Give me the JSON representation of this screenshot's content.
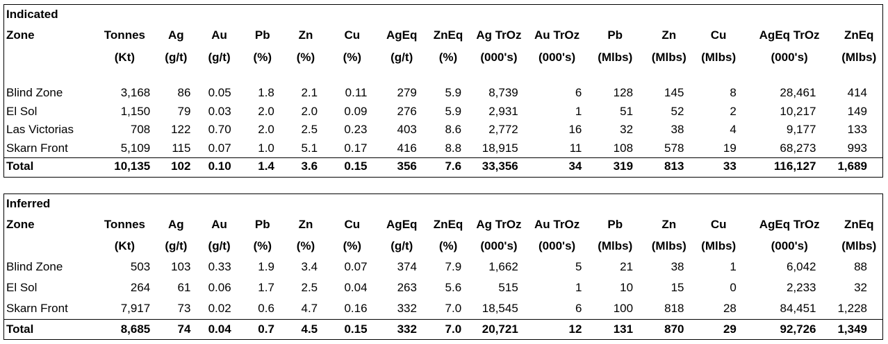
{
  "tables": [
    {
      "title": "Indicated",
      "headers_top": [
        "Zone",
        "Tonnes",
        "Ag",
        "Au",
        "Pb",
        "Zn",
        "Cu",
        "AgEq",
        "ZnEq",
        "Ag TrOz",
        "Au TrOz",
        "Pb",
        "Zn",
        "Cu",
        "AgEq TrOz",
        "ZnEq"
      ],
      "headers_bottom": [
        "",
        "(Kt)",
        "(g/t)",
        "(g/t)",
        "(%)",
        "(%)",
        "(%)",
        "(g/t)",
        "(%)",
        "(000's)",
        "(000's)",
        "(Mlbs)",
        "(Mlbs)",
        "(Mlbs)",
        "(000's)",
        "(Mlbs)"
      ],
      "rows": [
        [
          "Blind Zone",
          "3,168",
          "86",
          "0.05",
          "1.8",
          "2.1",
          "0.11",
          "279",
          "5.9",
          "8,739",
          "6",
          "128",
          "145",
          "8",
          "28,461",
          "414"
        ],
        [
          "El Sol",
          "1,150",
          "79",
          "0.03",
          "2.0",
          "2.0",
          "0.09",
          "276",
          "5.9",
          "2,931",
          "1",
          "51",
          "52",
          "2",
          "10,217",
          "149"
        ],
        [
          "Las Victorias",
          "708",
          "122",
          "0.70",
          "2.0",
          "2.5",
          "0.23",
          "403",
          "8.6",
          "2,772",
          "16",
          "32",
          "38",
          "4",
          "9,177",
          "133"
        ],
        [
          "Skarn Front",
          "5,109",
          "115",
          "0.07",
          "1.0",
          "5.1",
          "0.17",
          "416",
          "8.8",
          "18,915",
          "11",
          "108",
          "578",
          "19",
          "68,273",
          "993"
        ]
      ],
      "total": [
        "Total",
        "10,135",
        "102",
        "0.10",
        "1.4",
        "3.6",
        "0.15",
        "356",
        "7.6",
        "33,356",
        "34",
        "319",
        "813",
        "33",
        "116,127",
        "1,689"
      ]
    },
    {
      "title": "Inferred",
      "headers_top": [
        "Zone",
        "Tonnes",
        "Ag",
        "Au",
        "Pb",
        "Zn",
        "Cu",
        "AgEq",
        "ZnEq",
        "Ag TrOz",
        "Au TrOz",
        "Pb",
        "Zn",
        "Cu",
        "AgEq TrOz",
        "ZnEq"
      ],
      "headers_bottom": [
        "",
        "(Kt)",
        "(g/t)",
        "(g/t)",
        "(%)",
        "(%)",
        "(%)",
        "(g/t)",
        "(%)",
        "(000's)",
        "(000's)",
        "(Mlbs)",
        "(Mlbs)",
        "(Mlbs)",
        "(000's)",
        "(Mlbs)"
      ],
      "rows": [
        [
          "Blind Zone",
          "503",
          "103",
          "0.33",
          "1.9",
          "3.4",
          "0.07",
          "374",
          "7.9",
          "1,662",
          "5",
          "21",
          "38",
          "1",
          "6,042",
          "88"
        ],
        [
          "El Sol",
          "264",
          "61",
          "0.06",
          "1.7",
          "2.5",
          "0.04",
          "263",
          "5.6",
          "515",
          "1",
          "10",
          "15",
          "0",
          "2,233",
          "32"
        ],
        [
          "Skarn Front",
          "7,917",
          "73",
          "0.02",
          "0.6",
          "4.7",
          "0.16",
          "332",
          "7.0",
          "18,545",
          "6",
          "100",
          "818",
          "28",
          "84,451",
          "1,228"
        ]
      ],
      "total": [
        "Total",
        "8,685",
        "74",
        "0.04",
        "0.7",
        "4.5",
        "0.15",
        "332",
        "7.0",
        "20,721",
        "12",
        "131",
        "870",
        "29",
        "92,726",
        "1,349"
      ]
    }
  ]
}
